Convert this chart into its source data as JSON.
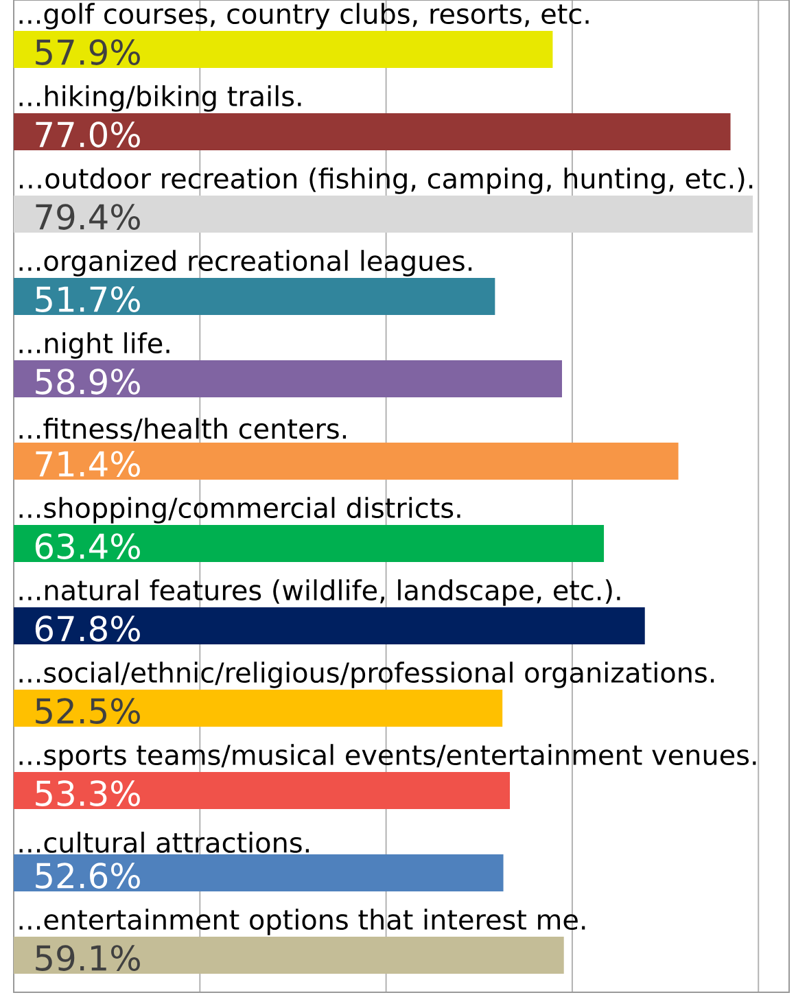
{
  "chart_data": {
    "type": "bar",
    "orientation": "horizontal",
    "categories": [
      "...golf courses, country clubs, resorts, etc.",
      "...hiking/biking trails.",
      "…outdoor recreation (fishing, camping, hunting, etc.).",
      "...organized recreational leagues.",
      "...night life.",
      "...fitness/health centers.",
      "...shopping/commercial districts.",
      "...natural features (wildlife, landscape, etc.).",
      "...social/ethnic/religious/professional organizations.",
      "...sports teams/musical events/entertainment venues.",
      "...cultural attractions.",
      "...entertainment options that interest me."
    ],
    "values": [
      57.9,
      77.0,
      79.4,
      51.7,
      58.9,
      71.4,
      63.4,
      67.8,
      52.5,
      53.3,
      52.6,
      59.1
    ],
    "value_labels": [
      "57.9%",
      "77.0%",
      "79.4%",
      "51.7%",
      "58.9%",
      "71.4%",
      "63.4%",
      "67.8%",
      "52.5%",
      "53.3%",
      "52.6%",
      "59.1%"
    ],
    "colors": [
      "#e8e800",
      "#953735",
      "#d9d9d9",
      "#31859c",
      "#8064a2",
      "#f79646",
      "#00b050",
      "#002060",
      "#ffc000",
      "#f0524a",
      "#4f81bd",
      "#c4bd97"
    ],
    "xlim": [
      0,
      83.3
    ],
    "xticks": [
      {
        "value": 0,
        "label": null
      },
      {
        "value": 20,
        "label": null
      },
      {
        "value": 40,
        "label": null
      },
      {
        "value": 60,
        "label": null
      },
      {
        "value": 80,
        "label": null
      }
    ],
    "grid": "x"
  }
}
